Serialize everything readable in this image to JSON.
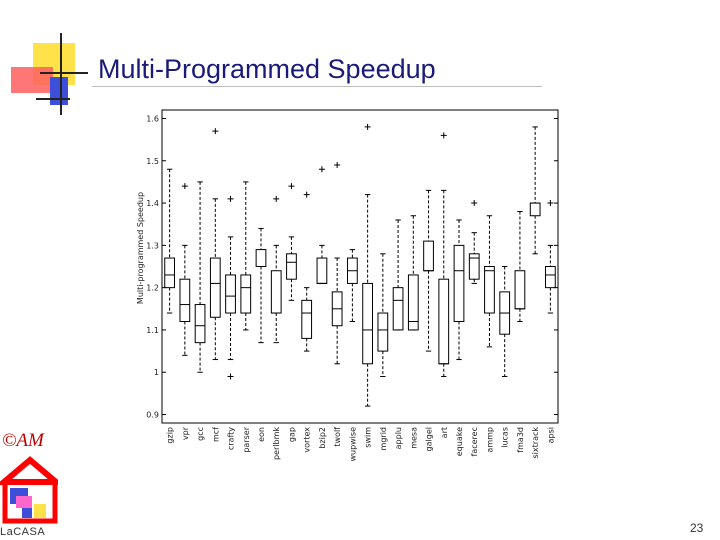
{
  "slide": {
    "title": "Multi-Programmed Speedup",
    "copyright": "©AM",
    "logo_text": "LaCASA",
    "page_number": "23",
    "colors": {
      "title": "#1a1a7a",
      "copyright": "#c00000",
      "house": "#ff0000"
    }
  },
  "chart_data": {
    "type": "box",
    "title": "",
    "xlabel": "",
    "ylabel": "Multi-programmed Speedup",
    "ylim": [
      0.88,
      1.62
    ],
    "yticks": [
      0.9,
      1,
      1.1,
      1.2,
      1.3,
      1.4,
      1.5,
      1.6
    ],
    "ytick_labels": [
      "0.9",
      "1",
      "1.1",
      "1.2",
      "1.3",
      "1.4",
      "1.5",
      "1.6"
    ],
    "grid": false,
    "categories": [
      "gzip",
      "vpr",
      "gcc",
      "mcf",
      "crafty",
      "parser",
      "eon",
      "perlbmk",
      "gap",
      "vortex",
      "bzip2",
      "twolf",
      "wupwise",
      "swim",
      "mgrid",
      "applu",
      "mesa",
      "galgel",
      "art",
      "equake",
      "facerec",
      "ammp",
      "lucas",
      "fma3d",
      "sixtrack",
      "apsi"
    ],
    "boxes": [
      {
        "whisker_low": 1.14,
        "q1": 1.2,
        "median": 1.23,
        "q3": 1.27,
        "whisker_high": 1.48,
        "outliers": []
      },
      {
        "whisker_low": 1.04,
        "q1": 1.12,
        "median": 1.16,
        "q3": 1.22,
        "whisker_high": 1.3,
        "outliers": [
          1.44
        ]
      },
      {
        "whisker_low": 1.0,
        "q1": 1.07,
        "median": 1.11,
        "q3": 1.16,
        "whisker_high": 1.45,
        "outliers": []
      },
      {
        "whisker_low": 1.03,
        "q1": 1.13,
        "median": 1.21,
        "q3": 1.27,
        "whisker_high": 1.41,
        "outliers": [
          1.57
        ]
      },
      {
        "whisker_low": 1.03,
        "q1": 1.14,
        "median": 1.18,
        "q3": 1.23,
        "whisker_high": 1.32,
        "outliers": [
          0.99,
          1.41
        ]
      },
      {
        "whisker_low": 1.1,
        "q1": 1.14,
        "median": 1.2,
        "q3": 1.23,
        "whisker_high": 1.45,
        "outliers": []
      },
      {
        "whisker_low": 1.07,
        "q1": 1.25,
        "median": 1.25,
        "q3": 1.29,
        "whisker_high": 1.34,
        "outliers": []
      },
      {
        "whisker_low": 1.07,
        "q1": 1.14,
        "median": 1.14,
        "q3": 1.24,
        "whisker_high": 1.3,
        "outliers": [
          1.41
        ]
      },
      {
        "whisker_low": 1.17,
        "q1": 1.22,
        "median": 1.26,
        "q3": 1.28,
        "whisker_high": 1.32,
        "outliers": [
          1.44
        ]
      },
      {
        "whisker_low": 1.05,
        "q1": 1.08,
        "median": 1.14,
        "q3": 1.17,
        "whisker_high": 1.2,
        "outliers": [
          1.42
        ]
      },
      {
        "whisker_low": 1.21,
        "q1": 1.21,
        "median": 1.21,
        "q3": 1.27,
        "whisker_high": 1.3,
        "outliers": [
          1.48
        ]
      },
      {
        "whisker_low": 1.02,
        "q1": 1.11,
        "median": 1.15,
        "q3": 1.19,
        "whisker_high": 1.27,
        "outliers": [
          1.49
        ]
      },
      {
        "whisker_low": 1.12,
        "q1": 1.21,
        "median": 1.24,
        "q3": 1.27,
        "whisker_high": 1.29,
        "outliers": []
      },
      {
        "whisker_low": 0.92,
        "q1": 1.02,
        "median": 1.1,
        "q3": 1.21,
        "whisker_high": 1.42,
        "outliers": [
          1.58
        ]
      },
      {
        "whisker_low": 0.99,
        "q1": 1.05,
        "median": 1.1,
        "q3": 1.14,
        "whisker_high": 1.28,
        "outliers": []
      },
      {
        "whisker_low": 1.1,
        "q1": 1.1,
        "median": 1.17,
        "q3": 1.2,
        "whisker_high": 1.36,
        "outliers": []
      },
      {
        "whisker_low": 1.1,
        "q1": 1.1,
        "median": 1.12,
        "q3": 1.23,
        "whisker_high": 1.37,
        "outliers": []
      },
      {
        "whisker_low": 1.05,
        "q1": 1.24,
        "median": 1.24,
        "q3": 1.31,
        "whisker_high": 1.43,
        "outliers": []
      },
      {
        "whisker_low": 0.99,
        "q1": 1.02,
        "median": 1.02,
        "q3": 1.22,
        "whisker_high": 1.43,
        "outliers": [
          1.56
        ]
      },
      {
        "whisker_low": 1.03,
        "q1": 1.12,
        "median": 1.24,
        "q3": 1.3,
        "whisker_high": 1.36,
        "outliers": []
      },
      {
        "whisker_low": 1.21,
        "q1": 1.22,
        "median": 1.27,
        "q3": 1.28,
        "whisker_high": 1.33,
        "outliers": [
          1.4
        ]
      },
      {
        "whisker_low": 1.06,
        "q1": 1.14,
        "median": 1.24,
        "q3": 1.25,
        "whisker_high": 1.37,
        "outliers": []
      },
      {
        "whisker_low": 0.99,
        "q1": 1.09,
        "median": 1.14,
        "q3": 1.19,
        "whisker_high": 1.25,
        "outliers": []
      },
      {
        "whisker_low": 1.12,
        "q1": 1.15,
        "median": 1.15,
        "q3": 1.24,
        "whisker_high": 1.38,
        "outliers": []
      },
      {
        "whisker_low": 1.28,
        "q1": 1.37,
        "median": 1.4,
        "q3": 1.4,
        "whisker_high": 1.58,
        "outliers": []
      },
      {
        "whisker_low": 1.14,
        "q1": 1.2,
        "median": 1.23,
        "q3": 1.25,
        "whisker_high": 1.3,
        "outliers": [
          1.4
        ]
      }
    ]
  }
}
